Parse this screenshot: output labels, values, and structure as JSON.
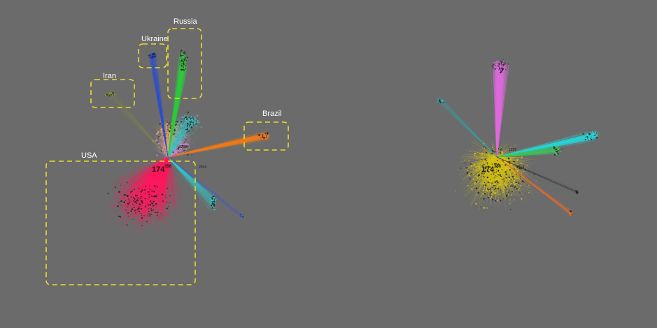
{
  "left_panel": {
    "regions": [
      {
        "id": "russia",
        "label": "Russia",
        "color": "#2ecc40"
      },
      {
        "id": "ukraine",
        "label": "Ukraine",
        "color": "#2c4fd6"
      },
      {
        "id": "iran",
        "label": "Iran",
        "color": "#8a9a2a"
      },
      {
        "id": "brazil",
        "label": "Brazil",
        "color": "#f07a1a"
      },
      {
        "id": "usa",
        "label": "USA",
        "color": "#ff1a5e"
      }
    ],
    "hub_label_main": "174",
    "hub_label_sup": "356",
    "minor_labels": [
      "1299",
      "2914"
    ]
  },
  "right_panel": {
    "hub_label_main": "174",
    "hub_label_sup": "356",
    "minor_labels": [
      "1299",
      "2914"
    ],
    "dominant_color": "#d4c215",
    "cluster_colors": [
      "#e06ee0",
      "#2ad4d4",
      "#3ec860",
      "#f06a2a"
    ]
  },
  "colors": {
    "background": "#6b6b6b",
    "box_stroke": "#e8e02a"
  }
}
